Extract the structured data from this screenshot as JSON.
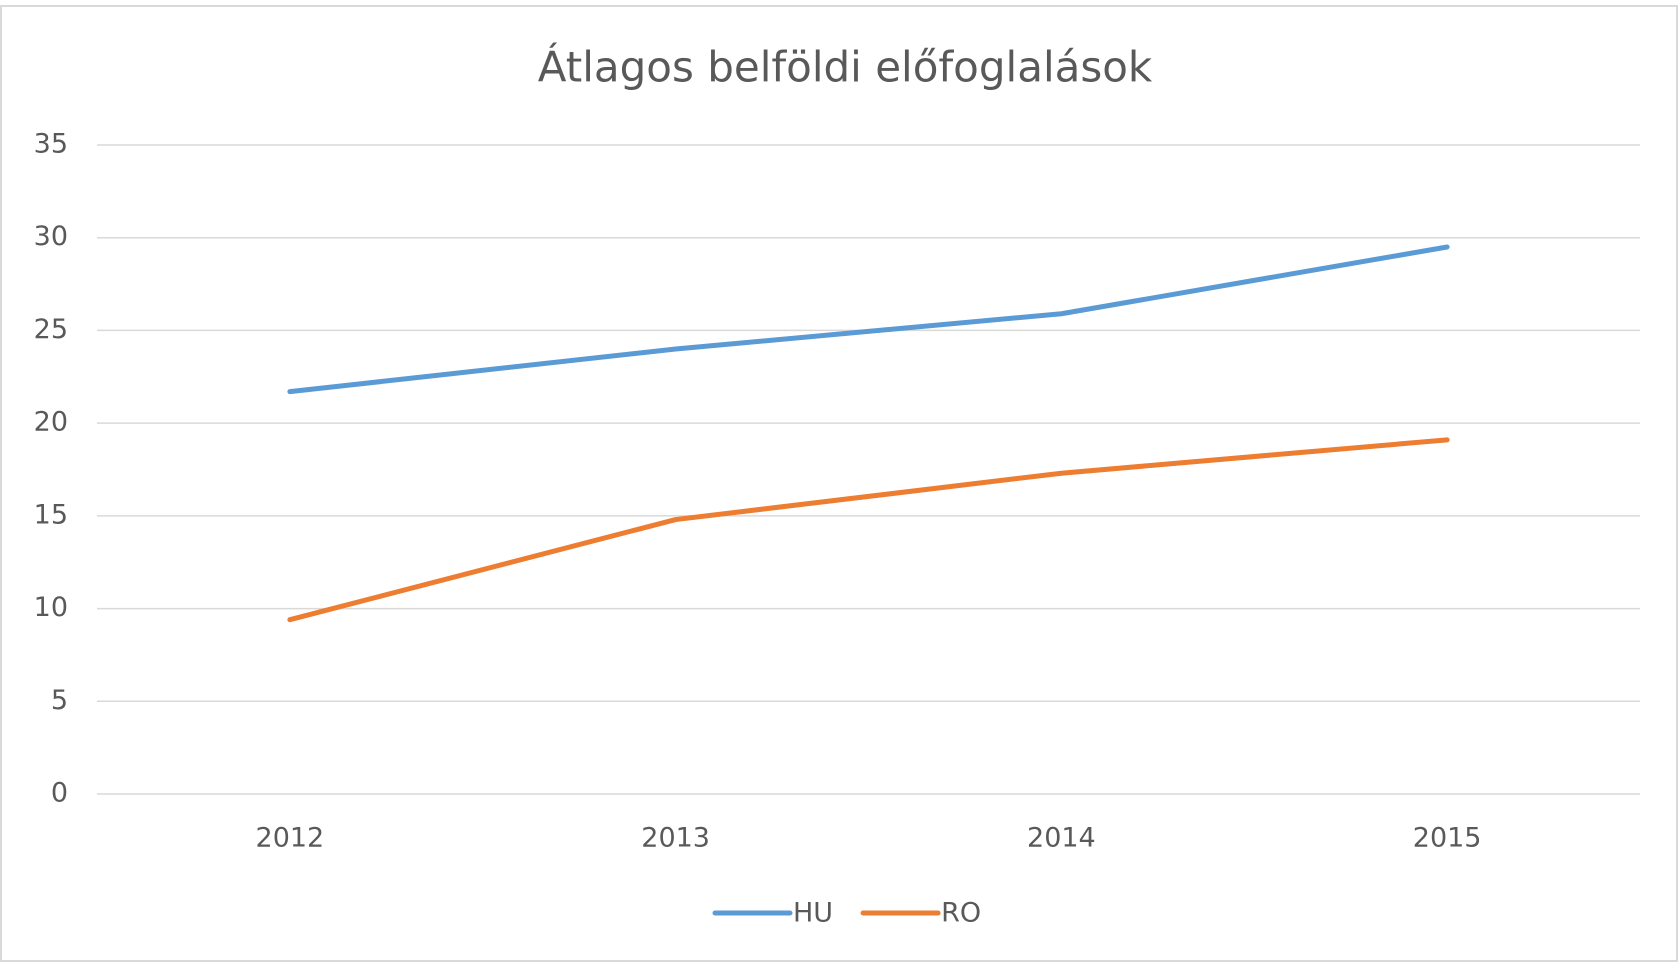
{
  "chart_data": {
    "type": "line",
    "title": "Átlagos belföldi előfoglalások",
    "categories": [
      "2012",
      "2013",
      "2014",
      "2015"
    ],
    "series": [
      {
        "name": "HU",
        "color": "#5b9bd5",
        "values": [
          21.7,
          24.0,
          25.9,
          29.5
        ]
      },
      {
        "name": "RO",
        "color": "#ed7d31",
        "values": [
          9.4,
          14.8,
          17.3,
          19.1
        ]
      }
    ],
    "ylim": [
      0,
      35
    ],
    "yticks": [
      0,
      5,
      10,
      15,
      20,
      25,
      30,
      35
    ],
    "grid": true,
    "legend": "bottom"
  }
}
